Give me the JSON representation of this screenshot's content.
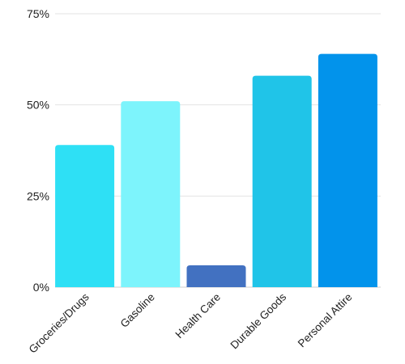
{
  "chart_data": {
    "type": "bar",
    "title": "",
    "xlabel": "",
    "ylabel": "",
    "categories": [
      "Groceries/Drugs",
      "Gasoline",
      "Health Care",
      "Durable Goods",
      "Personal Attire"
    ],
    "values": [
      39,
      51,
      6,
      58,
      64
    ],
    "colors": [
      "#2ee0f5",
      "#7df4fc",
      "#4271c1",
      "#20c4e8",
      "#0293eb"
    ],
    "ylim": [
      0,
      75
    ],
    "yticks": [
      0,
      25,
      50,
      75
    ],
    "ytick_labels": [
      "0%",
      "25%",
      "50%",
      "75%"
    ],
    "grid": true,
    "legend": "none"
  }
}
